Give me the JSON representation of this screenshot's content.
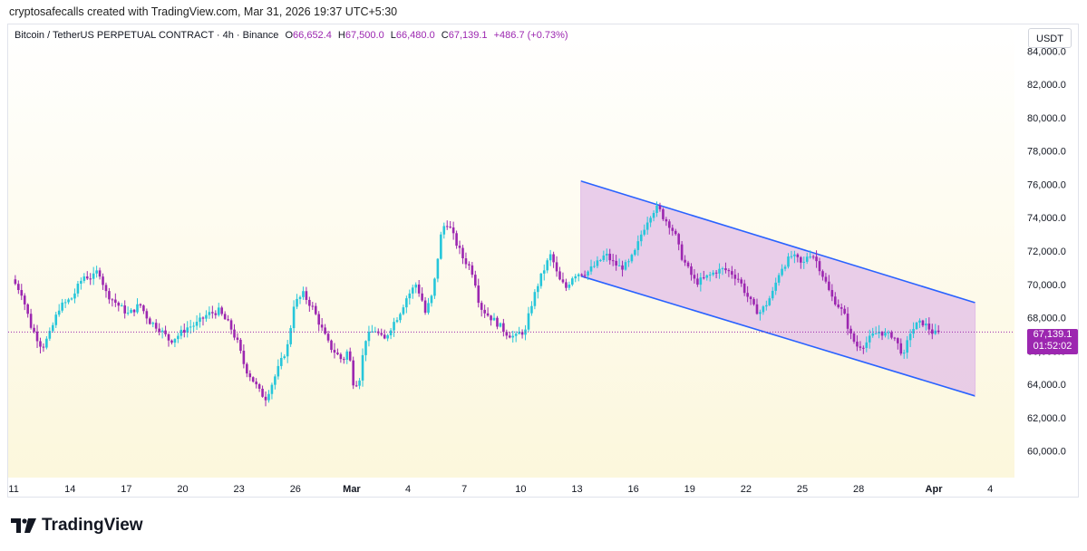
{
  "header": {
    "attribution": "cryptosafecalls created with TradingView.com, Mar 31, 2026 19:37 UTC+5:30"
  },
  "legend": {
    "symbol": "Bitcoin / TetherUS PERPETUAL CONTRACT · 4h · Binance",
    "open_label": "O",
    "open": "66,652.4",
    "high_label": "H",
    "high": "67,500.0",
    "low_label": "L",
    "low": "66,480.0",
    "close_label": "C",
    "close": "67,139.1",
    "change": "+486.7 (+0.73%)"
  },
  "price_axis": {
    "currency": "USDT",
    "ticks": [
      "60,000.0",
      "62,000.0",
      "64,000.0",
      "66,000.0",
      "68,000.0",
      "70,000.0",
      "72,000.0",
      "74,000.0",
      "76,000.0",
      "78,000.0",
      "80,000.0",
      "82,000.0",
      "84,000.0"
    ]
  },
  "last_price": {
    "price": "67,139.1",
    "countdown": "01:52:02"
  },
  "time_axis": {
    "ticks": [
      {
        "label": "11",
        "day": 11
      },
      {
        "label": "14",
        "day": 14
      },
      {
        "label": "17",
        "day": 17
      },
      {
        "label": "20",
        "day": 20
      },
      {
        "label": "23",
        "day": 23
      },
      {
        "label": "26",
        "day": 26
      },
      {
        "label": "Mar",
        "day": 29
      },
      {
        "label": "4",
        "day": 32
      },
      {
        "label": "7",
        "day": 35
      },
      {
        "label": "10",
        "day": 38
      },
      {
        "label": "13",
        "day": 41
      },
      {
        "label": "16",
        "day": 44
      },
      {
        "label": "19",
        "day": 47
      },
      {
        "label": "22",
        "day": 50
      },
      {
        "label": "25",
        "day": 53
      },
      {
        "label": "28",
        "day": 56
      },
      {
        "label": "Apr",
        "day": 60
      },
      {
        "label": "4",
        "day": 63
      }
    ]
  },
  "footer": {
    "brand": "TradingView"
  },
  "colors": {
    "up": "#26c6da",
    "down": "#9c27b0",
    "channel_line": "#2962ff",
    "channel_fill": "#e1bee7",
    "accent": "#9c27b0"
  },
  "chart_data": {
    "type": "candlestick",
    "title": "Bitcoin / TetherUS PERPETUAL CONTRACT · 4h · Binance",
    "interval": "4h",
    "ylabel": "USDT",
    "ylim": [
      58400,
      85600
    ],
    "x_unit": "days since Feb 0",
    "xlim": [
      10.8,
      64.2
    ],
    "path": [
      [
        11.0,
        70300
      ],
      [
        11.5,
        69500
      ],
      [
        12.0,
        67500
      ],
      [
        12.6,
        66200
      ],
      [
        13.0,
        67000
      ],
      [
        13.5,
        68600
      ],
      [
        14.2,
        69200
      ],
      [
        14.8,
        70500
      ],
      [
        15.3,
        70400
      ],
      [
        15.6,
        70900
      ],
      [
        16.0,
        69500
      ],
      [
        16.6,
        68800
      ],
      [
        17.2,
        68200
      ],
      [
        17.8,
        68800
      ],
      [
        18.3,
        67800
      ],
      [
        18.8,
        67400
      ],
      [
        19.4,
        66600
      ],
      [
        19.8,
        66900
      ],
      [
        20.3,
        67400
      ],
      [
        20.8,
        67600
      ],
      [
        21.4,
        68200
      ],
      [
        22.0,
        68400
      ],
      [
        22.6,
        67500
      ],
      [
        23.0,
        66500
      ],
      [
        23.4,
        65000
      ],
      [
        23.8,
        64300
      ],
      [
        24.2,
        63500
      ],
      [
        24.5,
        63200
      ],
      [
        24.9,
        64200
      ],
      [
        25.3,
        65300
      ],
      [
        25.7,
        66400
      ],
      [
        26.0,
        68800
      ],
      [
        26.5,
        69400
      ],
      [
        27.0,
        68600
      ],
      [
        27.5,
        67300
      ],
      [
        27.9,
        66300
      ],
      [
        28.3,
        65800
      ],
      [
        28.6,
        65400
      ],
      [
        28.9,
        66100
      ],
      [
        29.2,
        63900
      ],
      [
        29.5,
        64400
      ],
      [
        29.8,
        66700
      ],
      [
        30.3,
        67300
      ],
      [
        30.8,
        66600
      ],
      [
        31.2,
        67500
      ],
      [
        31.6,
        68200
      ],
      [
        32.0,
        69200
      ],
      [
        32.5,
        70000
      ],
      [
        32.8,
        69200
      ],
      [
        33.0,
        68300
      ],
      [
        33.4,
        69400
      ],
      [
        33.7,
        71900
      ],
      [
        33.9,
        73400
      ],
      [
        34.2,
        73700
      ],
      [
        34.6,
        72600
      ],
      [
        35.0,
        71600
      ],
      [
        35.4,
        71000
      ],
      [
        35.6,
        70500
      ],
      [
        35.9,
        68700
      ],
      [
        36.3,
        68200
      ],
      [
        36.8,
        67700
      ],
      [
        37.3,
        67100
      ],
      [
        37.8,
        66800
      ],
      [
        38.1,
        67200
      ],
      [
        38.3,
        67000
      ],
      [
        38.6,
        68600
      ],
      [
        39.0,
        70000
      ],
      [
        39.4,
        71100
      ],
      [
        39.7,
        71800
      ],
      [
        40.1,
        70300
      ],
      [
        40.5,
        69800
      ],
      [
        40.9,
        70600
      ],
      [
        41.3,
        70700
      ],
      [
        41.6,
        70700
      ],
      [
        41.9,
        71000
      ],
      [
        42.2,
        71300
      ],
      [
        42.6,
        71800
      ],
      [
        43.0,
        71300
      ],
      [
        43.4,
        71000
      ],
      [
        43.8,
        71200
      ],
      [
        44.2,
        72000
      ],
      [
        44.5,
        73000
      ],
      [
        44.8,
        73800
      ],
      [
        45.1,
        74400
      ],
      [
        45.4,
        74600
      ],
      [
        45.7,
        74000
      ],
      [
        46.0,
        73600
      ],
      [
        46.3,
        73000
      ],
      [
        46.6,
        71800
      ],
      [
        47.0,
        70900
      ],
      [
        47.4,
        70100
      ],
      [
        47.8,
        70300
      ],
      [
        48.1,
        70500
      ],
      [
        48.5,
        70800
      ],
      [
        48.9,
        70900
      ],
      [
        49.3,
        70700
      ],
      [
        49.7,
        70300
      ],
      [
        50.1,
        69400
      ],
      [
        50.5,
        68600
      ],
      [
        50.8,
        68300
      ],
      [
        51.1,
        68700
      ],
      [
        51.5,
        69500
      ],
      [
        51.9,
        70900
      ],
      [
        52.2,
        71300
      ],
      [
        52.5,
        71700
      ],
      [
        52.8,
        71500
      ],
      [
        53.1,
        71100
      ],
      [
        53.4,
        71900
      ],
      [
        53.7,
        71700
      ],
      [
        54.0,
        71000
      ],
      [
        54.3,
        70200
      ],
      [
        54.6,
        69300
      ],
      [
        54.9,
        68900
      ],
      [
        55.3,
        68200
      ],
      [
        55.7,
        66800
      ],
      [
        56.0,
        66300
      ],
      [
        56.4,
        66400
      ],
      [
        56.8,
        66900
      ],
      [
        57.2,
        67200
      ],
      [
        57.6,
        66900
      ],
      [
        57.9,
        67000
      ],
      [
        58.2,
        66300
      ],
      [
        58.5,
        65700
      ],
      [
        58.8,
        67100
      ],
      [
        59.2,
        67600
      ],
      [
        59.5,
        67700
      ],
      [
        59.8,
        67400
      ],
      [
        60.1,
        67000
      ],
      [
        60.3,
        67139
      ]
    ],
    "channel": {
      "upper": [
        [
          41.2,
          76200
        ],
        [
          62.2,
          68900
        ]
      ],
      "lower": [
        [
          41.2,
          70500
        ],
        [
          62.2,
          63300
        ]
      ]
    },
    "last_price": 67139.1
  }
}
